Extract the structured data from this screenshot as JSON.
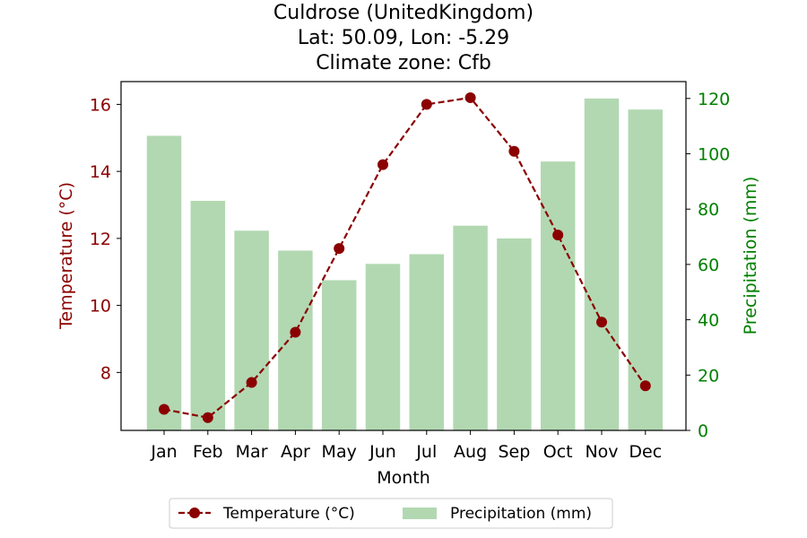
{
  "chart_data": {
    "type": "bar",
    "title_lines": [
      "Culdrose (UnitedKingdom)",
      "Lat: 50.09, Lon: -5.29",
      "Climate zone: Cfb"
    ],
    "xlabel": "Month",
    "categories": [
      "Jan",
      "Feb",
      "Mar",
      "Apr",
      "May",
      "Jun",
      "Jul",
      "Aug",
      "Sep",
      "Oct",
      "Nov",
      "Dec"
    ],
    "y_left": {
      "label": "Temperature (°C)",
      "ticks": [
        8,
        10,
        12,
        14,
        16
      ],
      "lim": [
        6.27,
        16.68
      ],
      "color": "#8b0000"
    },
    "y_right": {
      "label": "Precipitation (mm)",
      "ticks": [
        0,
        20,
        40,
        60,
        80,
        100,
        120
      ],
      "lim": [
        0,
        126.1
      ],
      "color": "#008000"
    },
    "series": [
      {
        "name": "Temperature (°C)",
        "type": "line",
        "axis": "left",
        "style": "dashed",
        "marker": "circle",
        "color": "#8b0000",
        "values": [
          6.9,
          6.65,
          7.7,
          9.2,
          11.7,
          14.2,
          16.0,
          16.2,
          14.6,
          12.1,
          9.5,
          7.6
        ]
      },
      {
        "name": "Precipitation (mm)",
        "type": "bar",
        "axis": "right",
        "color": "#b2d8b2",
        "values": [
          106.5,
          83.0,
          72.2,
          65.0,
          54.3,
          60.2,
          63.7,
          74.0,
          69.4,
          97.2,
          120.0,
          116.0
        ]
      }
    ],
    "legend": {
      "placement": "below",
      "entries": [
        "Temperature (°C)",
        "Precipitation (mm)"
      ]
    },
    "grid": false
  }
}
